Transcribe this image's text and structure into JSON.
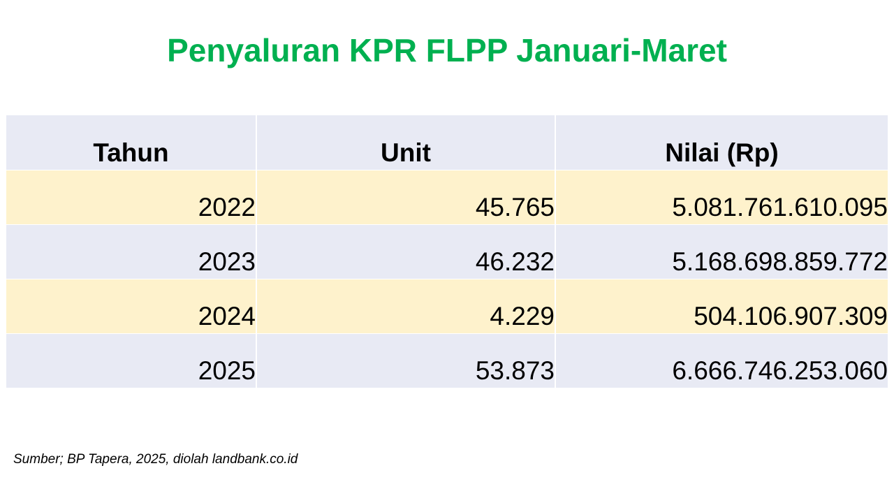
{
  "title": "Penyaluran KPR FLPP Januari-Maret",
  "table": {
    "headers": {
      "year": "Tahun",
      "unit": "Unit",
      "value": "Nilai (Rp)"
    },
    "rows": [
      {
        "year": "2022",
        "unit": "45.765",
        "value": "5.081.761.610.095"
      },
      {
        "year": "2023",
        "unit": "46.232",
        "value": "5.168.698.859.772"
      },
      {
        "year": "2024",
        "unit": "4.229",
        "value": "504.106.907.309"
      },
      {
        "year": "2025",
        "unit": "53.873",
        "value": "6.666.746.253.060"
      }
    ]
  },
  "source": "Sumber; BP Tapera, 2025, diolah landbank.co.id",
  "colors": {
    "title": "#00b050",
    "row_blue": "#e8eaf4",
    "row_yellow": "#fef2cc"
  }
}
